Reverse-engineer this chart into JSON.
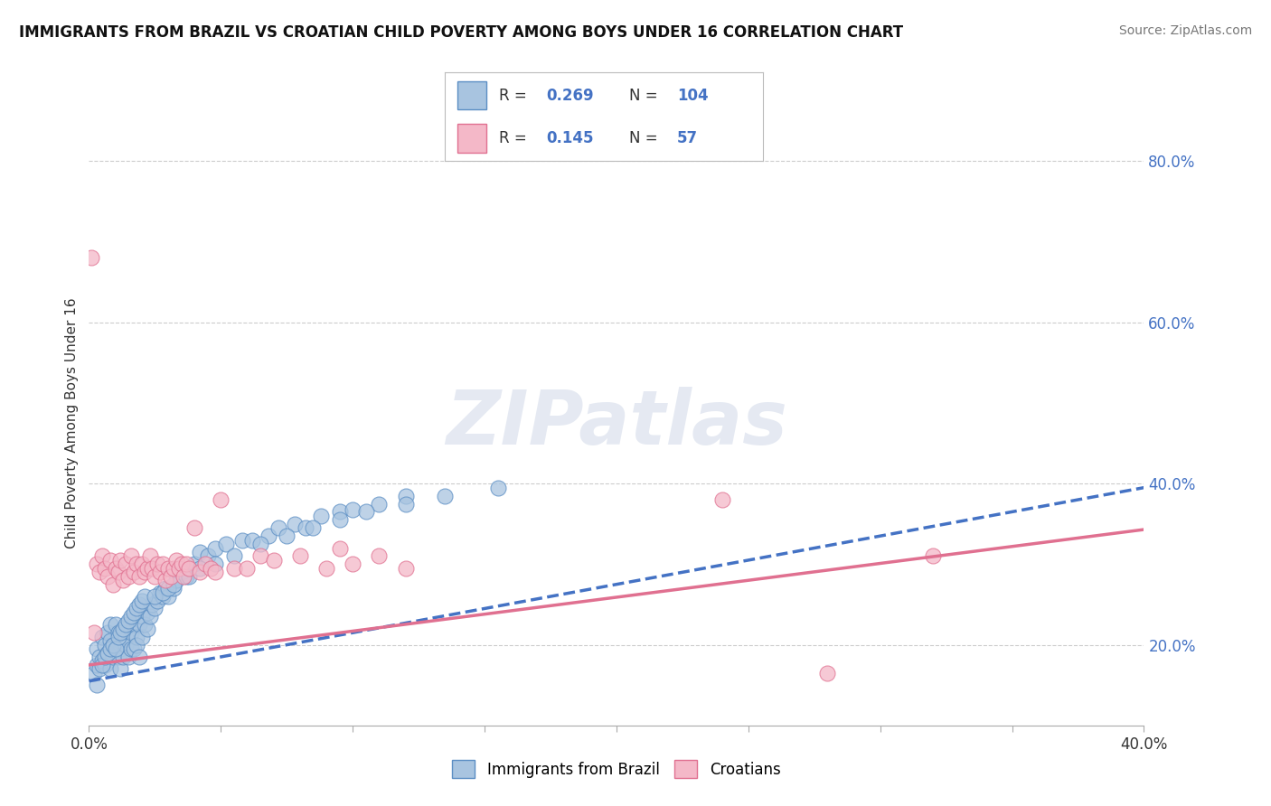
{
  "title": "IMMIGRANTS FROM BRAZIL VS CROATIAN CHILD POVERTY AMONG BOYS UNDER 16 CORRELATION CHART",
  "source": "Source: ZipAtlas.com",
  "ylabel": "Child Poverty Among Boys Under 16",
  "xlim": [
    0.0,
    0.4
  ],
  "ylim": [
    0.1,
    0.85
  ],
  "xticks": [
    0.0,
    0.05,
    0.1,
    0.15,
    0.2,
    0.25,
    0.3,
    0.35,
    0.4
  ],
  "yticks_right": [
    0.2,
    0.4,
    0.6,
    0.8
  ],
  "ytick_right_labels": [
    "20.0%",
    "40.0%",
    "60.0%",
    "80.0%"
  ],
  "brazil_color": "#a8c4e0",
  "brazil_edge": "#5b8ec4",
  "croatian_color": "#f4b8c8",
  "croatian_edge": "#e07090",
  "brazil_line_color": "#4472c4",
  "croatian_line_color": "#e07090",
  "legend_R_color": "#4472c4",
  "brazil_R": 0.269,
  "brazil_N": 104,
  "croatian_R": 0.145,
  "croatian_N": 57,
  "brazil_intercept": 0.155,
  "brazil_slope": 0.6,
  "croatian_intercept": 0.175,
  "croatian_slope": 0.42,
  "brazil_scatter_x": [
    0.002,
    0.003,
    0.003,
    0.004,
    0.004,
    0.005,
    0.005,
    0.006,
    0.006,
    0.007,
    0.007,
    0.008,
    0.008,
    0.008,
    0.009,
    0.009,
    0.01,
    0.01,
    0.011,
    0.011,
    0.012,
    0.012,
    0.012,
    0.013,
    0.013,
    0.014,
    0.014,
    0.015,
    0.015,
    0.016,
    0.016,
    0.017,
    0.017,
    0.018,
    0.018,
    0.019,
    0.019,
    0.02,
    0.02,
    0.021,
    0.022,
    0.022,
    0.023,
    0.024,
    0.025,
    0.026,
    0.027,
    0.028,
    0.029,
    0.03,
    0.032,
    0.033,
    0.035,
    0.037,
    0.04,
    0.042,
    0.045,
    0.048,
    0.052,
    0.058,
    0.062,
    0.068,
    0.072,
    0.078,
    0.082,
    0.088,
    0.095,
    0.1,
    0.11,
    0.12,
    0.003,
    0.005,
    0.006,
    0.007,
    0.008,
    0.009,
    0.01,
    0.011,
    0.012,
    0.013,
    0.014,
    0.015,
    0.016,
    0.017,
    0.018,
    0.019,
    0.02,
    0.021,
    0.025,
    0.028,
    0.03,
    0.032,
    0.038,
    0.042,
    0.048,
    0.055,
    0.065,
    0.075,
    0.085,
    0.095,
    0.105,
    0.12,
    0.135,
    0.155
  ],
  "brazil_scatter_y": [
    0.165,
    0.175,
    0.195,
    0.185,
    0.17,
    0.21,
    0.18,
    0.2,
    0.175,
    0.215,
    0.19,
    0.205,
    0.17,
    0.225,
    0.185,
    0.2,
    0.195,
    0.225,
    0.185,
    0.215,
    0.195,
    0.205,
    0.17,
    0.215,
    0.185,
    0.21,
    0.2,
    0.225,
    0.185,
    0.215,
    0.195,
    0.225,
    0.195,
    0.21,
    0.2,
    0.225,
    0.185,
    0.235,
    0.21,
    0.225,
    0.24,
    0.22,
    0.235,
    0.25,
    0.245,
    0.255,
    0.265,
    0.26,
    0.27,
    0.26,
    0.27,
    0.28,
    0.29,
    0.285,
    0.3,
    0.315,
    0.31,
    0.32,
    0.325,
    0.33,
    0.33,
    0.335,
    0.345,
    0.35,
    0.345,
    0.36,
    0.365,
    0.368,
    0.375,
    0.385,
    0.15,
    0.175,
    0.185,
    0.19,
    0.195,
    0.2,
    0.195,
    0.21,
    0.215,
    0.22,
    0.225,
    0.23,
    0.235,
    0.24,
    0.245,
    0.25,
    0.255,
    0.26,
    0.26,
    0.265,
    0.27,
    0.275,
    0.285,
    0.295,
    0.3,
    0.31,
    0.325,
    0.335,
    0.345,
    0.355,
    0.365,
    0.375,
    0.385,
    0.395
  ],
  "croatian_scatter_x": [
    0.001,
    0.002,
    0.003,
    0.004,
    0.005,
    0.006,
    0.007,
    0.008,
    0.009,
    0.01,
    0.011,
    0.012,
    0.013,
    0.014,
    0.015,
    0.016,
    0.017,
    0.018,
    0.019,
    0.02,
    0.021,
    0.022,
    0.023,
    0.024,
    0.025,
    0.026,
    0.027,
    0.028,
    0.029,
    0.03,
    0.031,
    0.032,
    0.033,
    0.034,
    0.035,
    0.036,
    0.037,
    0.038,
    0.04,
    0.042,
    0.044,
    0.046,
    0.048,
    0.05,
    0.055,
    0.06,
    0.065,
    0.07,
    0.08,
    0.09,
    0.095,
    0.1,
    0.11,
    0.12,
    0.24,
    0.28,
    0.32
  ],
  "croatian_scatter_y": [
    0.68,
    0.215,
    0.3,
    0.29,
    0.31,
    0.295,
    0.285,
    0.305,
    0.275,
    0.295,
    0.29,
    0.305,
    0.28,
    0.3,
    0.285,
    0.31,
    0.29,
    0.3,
    0.285,
    0.3,
    0.29,
    0.295,
    0.31,
    0.295,
    0.285,
    0.3,
    0.29,
    0.3,
    0.28,
    0.295,
    0.285,
    0.295,
    0.305,
    0.295,
    0.3,
    0.285,
    0.3,
    0.295,
    0.345,
    0.29,
    0.3,
    0.295,
    0.29,
    0.38,
    0.295,
    0.295,
    0.31,
    0.305,
    0.31,
    0.295,
    0.32,
    0.3,
    0.31,
    0.295,
    0.38,
    0.165,
    0.31
  ]
}
